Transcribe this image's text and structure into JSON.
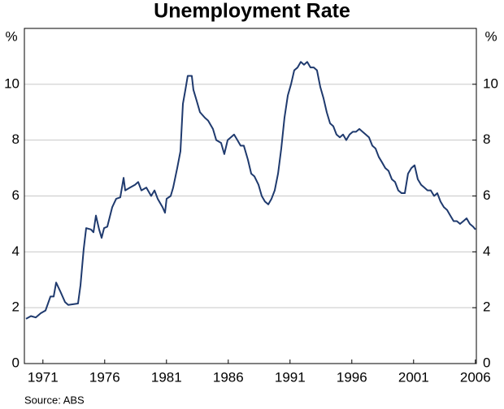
{
  "chart_data": {
    "type": "line",
    "title": "Unemployment Rate",
    "ylabel": "%",
    "y2label": "%",
    "source": "Source: ABS",
    "x": [
      1970.13,
      1970.53,
      1970.92,
      1971.32,
      1971.71,
      1972.11,
      1972.37,
      1972.57,
      1972.89,
      1973.29,
      1973.55,
      1974.34,
      1974.54,
      1974.8,
      1975.0,
      1975.39,
      1975.59,
      1975.79,
      1976.05,
      1976.25,
      1976.45,
      1976.71,
      1977.11,
      1977.43,
      1977.76,
      1978.03,
      1978.16,
      1978.55,
      1978.95,
      1979.21,
      1979.47,
      1979.87,
      1980.26,
      1980.53,
      1980.79,
      1981.18,
      1981.38,
      1981.51,
      1981.84,
      1982.04,
      1982.37,
      1982.63,
      1982.83,
      1983.03,
      1983.22,
      1983.55,
      1983.68,
      1983.95,
      1984.21,
      1984.61,
      1984.87,
      1985.26,
      1985.53,
      1985.92,
      1986.18,
      1986.45,
      1986.71,
      1986.97,
      1987.24,
      1987.5,
      1987.76,
      1988.09,
      1988.36,
      1988.62,
      1988.95,
      1989.21,
      1989.47,
      1989.74,
      1990.0,
      1990.26,
      1990.53,
      1990.79,
      1991.05,
      1991.32,
      1991.58,
      1991.84,
      1992.11,
      1992.37,
      1992.63,
      1992.89,
      1993.16,
      1993.42,
      1993.68,
      1993.95,
      1994.21,
      1994.47,
      1994.74,
      1995.0,
      1995.26,
      1995.53,
      1995.79,
      1996.05,
      1996.32,
      1996.58,
      1996.84,
      1997.11,
      1997.37,
      1997.63,
      1997.89,
      1998.16,
      1998.42,
      1998.68,
      1998.95,
      1999.21,
      1999.47,
      1999.74,
      2000.0,
      2000.26,
      2000.53,
      2000.79,
      2001.05,
      2001.32,
      2001.58,
      2001.84,
      2002.11,
      2002.37,
      2002.63,
      2002.89,
      2003.16,
      2003.42,
      2003.68,
      2003.95,
      2004.21,
      2004.47,
      2004.74,
      2005.0,
      2005.26,
      2005.53,
      2005.79,
      2006.05,
      2006.32,
      2006.51
    ],
    "series": [
      {
        "color": "#1f3a6e",
        "values": [
          1.6,
          1.7,
          1.65,
          1.8,
          1.9,
          2.4,
          2.4,
          2.9,
          2.6,
          2.2,
          2.1,
          2.15,
          2.8,
          4.1,
          4.85,
          4.8,
          4.7,
          5.3,
          4.8,
          4.5,
          4.85,
          4.9,
          5.6,
          5.9,
          5.95,
          6.65,
          6.2,
          6.3,
          6.4,
          6.5,
          6.2,
          6.3,
          6.0,
          6.2,
          5.9,
          5.6,
          5.4,
          5.9,
          6.0,
          6.3,
          7.0,
          7.6,
          9.3,
          9.8,
          10.3,
          10.3,
          9.8,
          9.4,
          9.0,
          8.8,
          8.7,
          8.4,
          8.0,
          7.9,
          7.5,
          8.0,
          8.1,
          8.2,
          8.0,
          7.8,
          7.8,
          7.3,
          6.8,
          6.7,
          6.4,
          6.0,
          5.8,
          5.7,
          5.9,
          6.2,
          6.8,
          7.7,
          8.8,
          9.6,
          10.0,
          10.5,
          10.6,
          10.8,
          10.7,
          10.8,
          10.6,
          10.6,
          10.5,
          9.9,
          9.5,
          9.0,
          8.6,
          8.5,
          8.2,
          8.1,
          8.2,
          8.0,
          8.2,
          8.3,
          8.3,
          8.4,
          8.3,
          8.2,
          8.1,
          7.8,
          7.7,
          7.4,
          7.2,
          7.0,
          6.9,
          6.6,
          6.5,
          6.2,
          6.1,
          6.1,
          6.8,
          7.0,
          7.1,
          6.6,
          6.4,
          6.3,
          6.2,
          6.2,
          6.0,
          6.1,
          5.8,
          5.6,
          5.5,
          5.3,
          5.1,
          5.1,
          5.0,
          5.1,
          5.2,
          5.0,
          4.9,
          4.8
        ]
      }
    ],
    "xlim": [
      1970,
      2006.58
    ],
    "xticks": [
      {
        "value": 1971.5,
        "label": "1971"
      },
      {
        "value": 1976.5,
        "label": "1976"
      },
      {
        "value": 1981.5,
        "label": "1981"
      },
      {
        "value": 1986.5,
        "label": "1986"
      },
      {
        "value": 1991.5,
        "label": "1991"
      },
      {
        "value": 1996.5,
        "label": "1996"
      },
      {
        "value": 2001.5,
        "label": "2001"
      },
      {
        "value": 2006.5,
        "label": "2006"
      }
    ],
    "ylim": [
      0,
      12
    ],
    "yticks": [
      0,
      2,
      4,
      6,
      8,
      10
    ],
    "y2lim": [
      0,
      12
    ],
    "y2ticks": [
      0,
      2,
      4,
      6,
      8,
      10
    ],
    "grid": true
  }
}
